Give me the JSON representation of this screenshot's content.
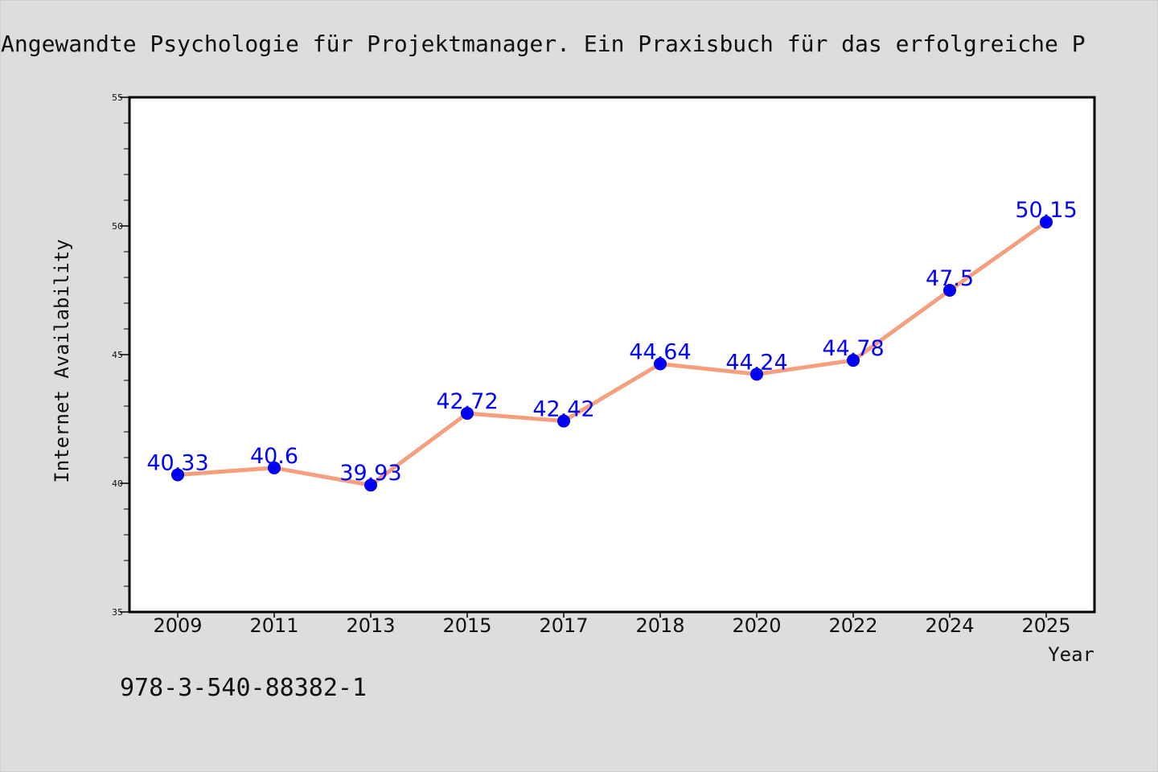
{
  "chart_data": {
    "type": "line",
    "title": "Angewandte Psychologie für Projektmanager. Ein Praxisbuch für das erfolgreiche P",
    "xlabel": "Year",
    "ylabel": "Internet Availability",
    "categories": [
      "2009",
      "2011",
      "2013",
      "2015",
      "2017",
      "2018",
      "2020",
      "2022",
      "2024",
      "2025"
    ],
    "series": [
      {
        "values": [
          40.33,
          40.6,
          39.93,
          42.72,
          42.42,
          44.64,
          44.24,
          44.78,
          47.5,
          50.15
        ],
        "labels": [
          "40.33",
          "40.6",
          "39.93",
          "42.72",
          "42.42",
          "44.64",
          "44.24",
          "44.78",
          "47.5",
          "50.15"
        ]
      }
    ],
    "ylim": [
      35,
      55
    ],
    "yticks": [
      "35",
      "40",
      "45",
      "50",
      "55"
    ],
    "grid": false,
    "legend": false,
    "colors": {
      "line": "#f4a07f",
      "marker": "#0000ff",
      "label": "#0000ff"
    }
  },
  "footer": {
    "isbn": "978-3-540-88382-1"
  }
}
